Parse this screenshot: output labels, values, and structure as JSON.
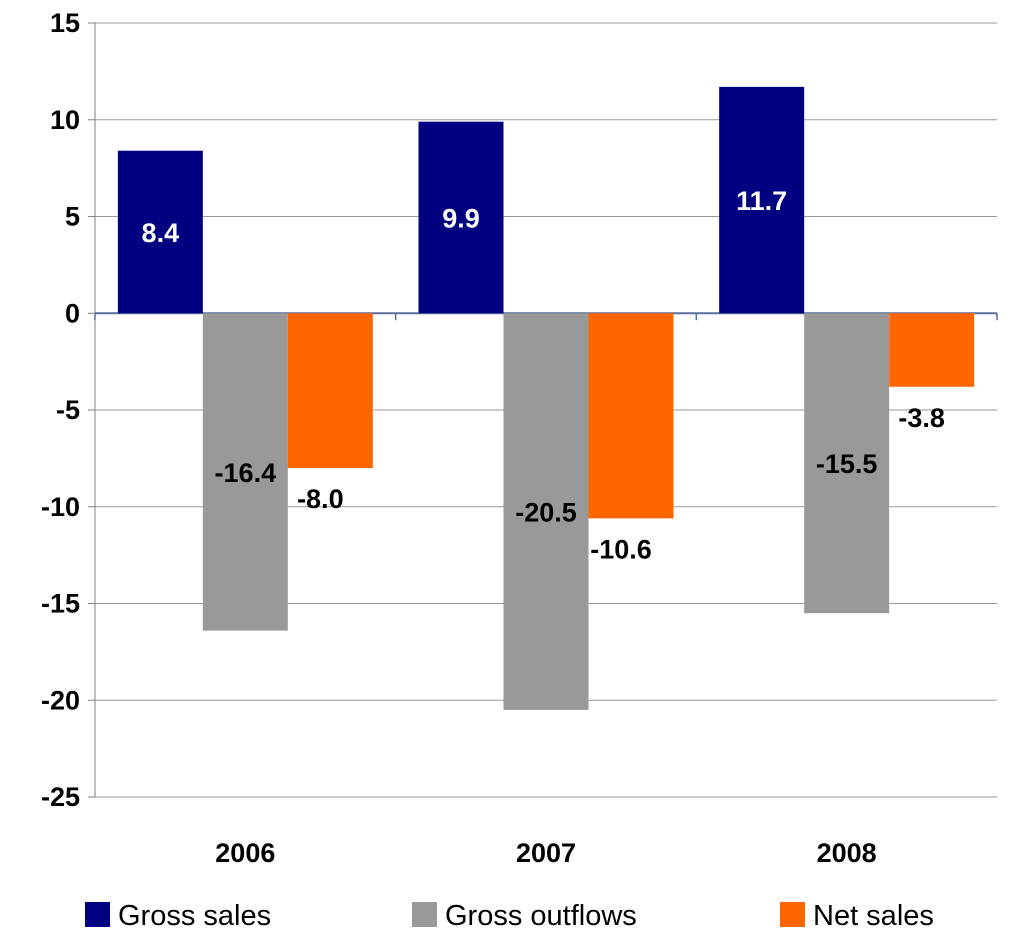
{
  "chart_data": {
    "type": "bar",
    "title": "",
    "xlabel": "",
    "ylabel": "",
    "categories": [
      "2006",
      "2007",
      "2008"
    ],
    "series": [
      {
        "name": "Gross sales",
        "values": [
          8.4,
          9.9,
          11.7
        ],
        "labels": [
          "8.4",
          "9.9",
          "11.7"
        ],
        "color": "#000080",
        "label_color": "#ffffff"
      },
      {
        "name": "Gross outflows",
        "values": [
          -16.4,
          -20.5,
          -15.5
        ],
        "labels": [
          "-16.4",
          "-20.5",
          "-15.5"
        ],
        "color": "#999999",
        "label_color": "#000000"
      },
      {
        "name": "Net sales",
        "values": [
          -8.0,
          -10.6,
          -3.8
        ],
        "labels": [
          "-8.0",
          "-10.6",
          "-3.8"
        ],
        "color": "#ff6600",
        "label_color": "#000000"
      }
    ],
    "ylim": [
      -25,
      15
    ],
    "yticks": [
      15,
      10,
      5,
      0,
      -5,
      -10,
      -15,
      -20,
      -25
    ],
    "ytick_labels": [
      "15",
      "10",
      "5",
      "0",
      "-5",
      "-10",
      "-15",
      "-20",
      "-25"
    ],
    "grid": true,
    "legend": "bottom"
  }
}
